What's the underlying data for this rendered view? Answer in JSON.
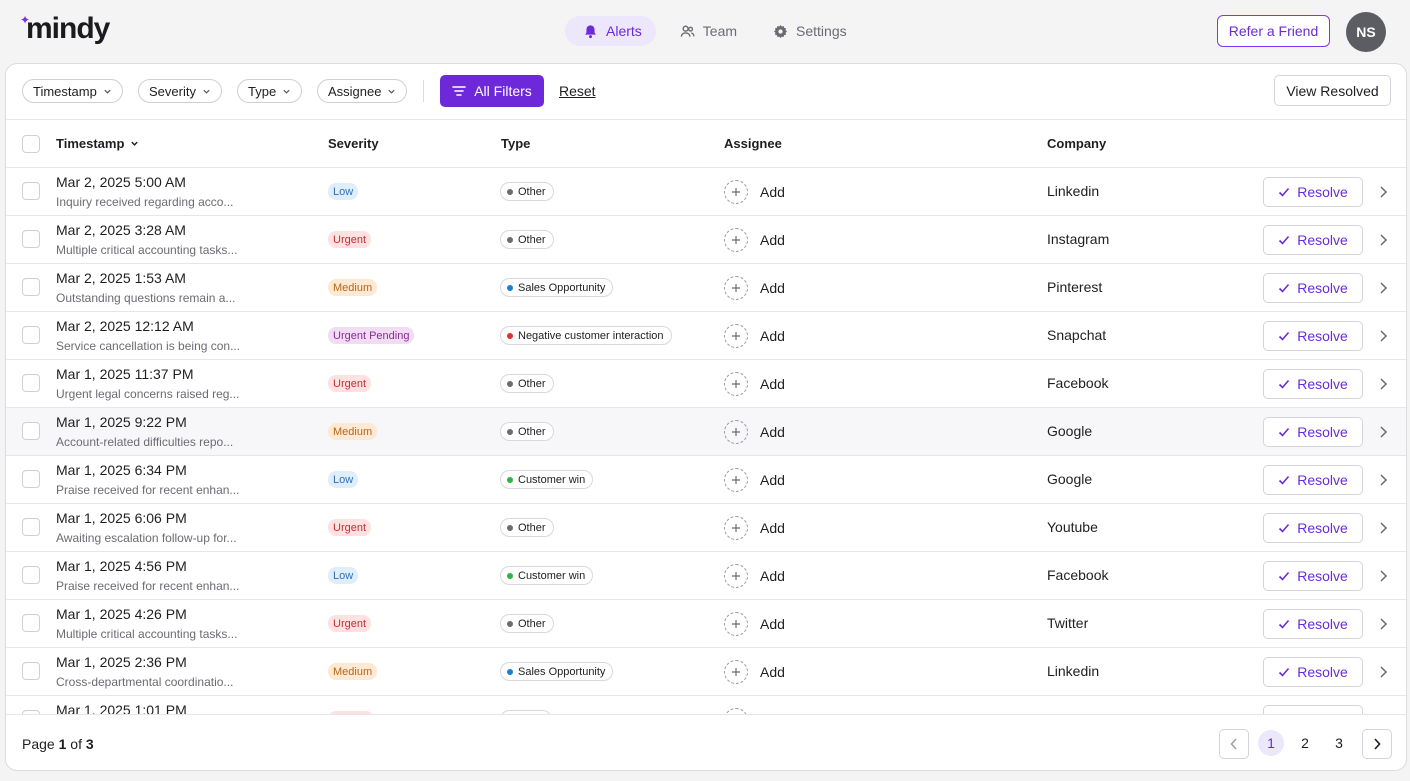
{
  "brand": {
    "logo_text": "mindy",
    "accent": "#6d28d9"
  },
  "nav": [
    {
      "label": "Alerts",
      "icon": "bell-icon",
      "active": true
    },
    {
      "label": "Team",
      "icon": "users-icon",
      "active": false
    },
    {
      "label": "Settings",
      "icon": "gear-icon",
      "active": false
    }
  ],
  "header": {
    "refer_label": "Refer a Friend",
    "avatar_initials": "NS"
  },
  "filters": {
    "chips": [
      "Timestamp",
      "Severity",
      "Type",
      "Assignee"
    ],
    "all_filters_label": "All Filters",
    "reset_label": "Reset",
    "view_resolved_label": "View Resolved"
  },
  "table": {
    "columns": {
      "timestamp": "Timestamp",
      "severity": "Severity",
      "type": "Type",
      "assignee": "Assignee",
      "company": "Company"
    },
    "add_label": "Add",
    "resolve_label": "Resolve",
    "rows": [
      {
        "timestamp": "Mar 2, 2025 5:00 AM",
        "desc": "Inquiry received regarding acco...",
        "severity": "Low",
        "sev_class": "low",
        "type": "Other",
        "type_color": "#6b6b74",
        "company": "Linkedin"
      },
      {
        "timestamp": "Mar 2, 2025 3:28 AM",
        "desc": "Multiple critical accounting tasks...",
        "severity": "Urgent",
        "sev_class": "urgent",
        "type": "Other",
        "type_color": "#6b6b74",
        "company": "Instagram"
      },
      {
        "timestamp": "Mar 2, 2025 1:53 AM",
        "desc": "Outstanding questions remain a...",
        "severity": "Medium",
        "sev_class": "medium",
        "type": "Sales Opportunity",
        "type_color": "#1d7fd1",
        "company": "Pinterest"
      },
      {
        "timestamp": "Mar 2, 2025 12:12 AM",
        "desc": "Service cancellation is being con...",
        "severity": "Urgent Pending",
        "sev_class": "pending",
        "type": "Negative customer interaction",
        "type_color": "#e03131",
        "company": "Snapchat"
      },
      {
        "timestamp": "Mar 1, 2025 11:37 PM",
        "desc": "Urgent legal concerns raised reg...",
        "severity": "Urgent",
        "sev_class": "urgent",
        "type": "Other",
        "type_color": "#6b6b74",
        "company": "Facebook"
      },
      {
        "timestamp": "Mar 1, 2025 9:22 PM",
        "desc": "Account-related difficulties repo...",
        "severity": "Medium",
        "sev_class": "medium",
        "type": "Other",
        "type_color": "#6b6b74",
        "company": "Google",
        "hover": true
      },
      {
        "timestamp": "Mar 1, 2025 6:34 PM",
        "desc": "Praise received for recent enhan...",
        "severity": "Low",
        "sev_class": "low",
        "type": "Customer win",
        "type_color": "#2fb344",
        "company": "Google"
      },
      {
        "timestamp": "Mar 1, 2025 6:06 PM",
        "desc": "Awaiting escalation follow-up for...",
        "severity": "Urgent",
        "sev_class": "urgent",
        "type": "Other",
        "type_color": "#6b6b74",
        "company": "Youtube"
      },
      {
        "timestamp": "Mar 1, 2025 4:56 PM",
        "desc": "Praise received for recent enhan...",
        "severity": "Low",
        "sev_class": "low",
        "type": "Customer win",
        "type_color": "#2fb344",
        "company": "Facebook"
      },
      {
        "timestamp": "Mar 1, 2025 4:26 PM",
        "desc": "Multiple critical accounting tasks...",
        "severity": "Urgent",
        "sev_class": "urgent",
        "type": "Other",
        "type_color": "#6b6b74",
        "company": "Twitter"
      },
      {
        "timestamp": "Mar 1, 2025 2:36 PM",
        "desc": "Cross-departmental coordinatio...",
        "severity": "Medium",
        "sev_class": "medium",
        "type": "Sales Opportunity",
        "type_color": "#1d7fd1",
        "company": "Linkedin"
      },
      {
        "timestamp": "Mar 1, 2025 1:01 PM",
        "desc": "",
        "severity": "",
        "sev_class": "urgent",
        "type": "",
        "type_color": "#6b6b74",
        "company": ""
      }
    ]
  },
  "pagination": {
    "prefix": "Page",
    "current": "1",
    "of_label": "of",
    "total": "3",
    "pages": [
      "1",
      "2",
      "3"
    ]
  }
}
